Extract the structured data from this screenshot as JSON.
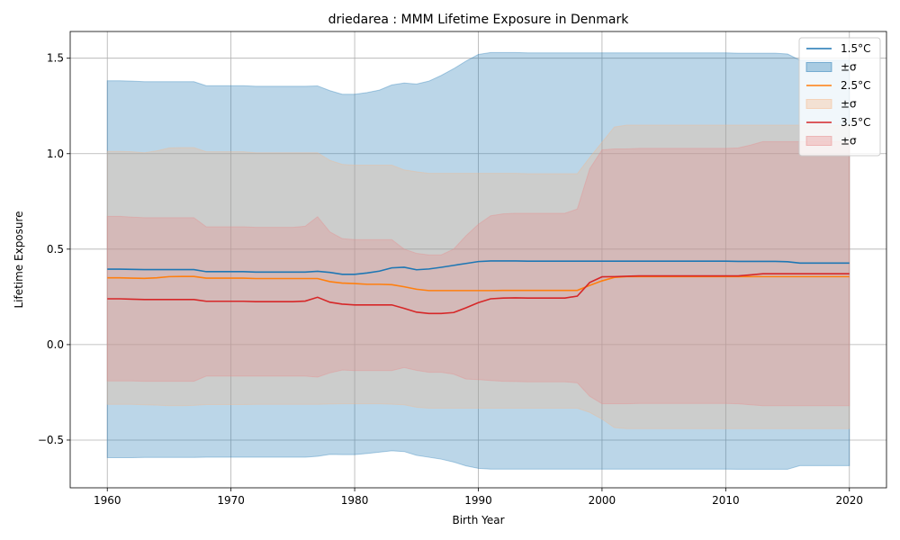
{
  "chart_data": {
    "type": "line",
    "title": "driedarea : MMM Lifetime Exposure in Denmark",
    "xlabel": "Birth Year",
    "ylabel": "Lifetime Exposure",
    "xlim": [
      1957,
      2023
    ],
    "ylim": [
      -0.75,
      1.64
    ],
    "xticks": [
      1960,
      1970,
      1980,
      1990,
      2000,
      2010,
      2020
    ],
    "yticks": [
      -0.5,
      0.0,
      0.5,
      1.0,
      1.5
    ],
    "xtick_labels": [
      "1960",
      "1970",
      "1980",
      "1990",
      "2000",
      "2010",
      "2020"
    ],
    "ytick_labels": [
      "−0.5",
      "0.0",
      "0.5",
      "1.0",
      "1.5"
    ],
    "grid": true,
    "legend_position": "top-right",
    "x": [
      1960,
      1961,
      1962,
      1963,
      1964,
      1965,
      1966,
      1967,
      1968,
      1969,
      1970,
      1971,
      1972,
      1973,
      1974,
      1975,
      1976,
      1977,
      1978,
      1979,
      1980,
      1981,
      1982,
      1983,
      1984,
      1985,
      1986,
      1987,
      1988,
      1989,
      1990,
      1991,
      1992,
      1993,
      1994,
      1995,
      1996,
      1997,
      1998,
      1999,
      2000,
      2001,
      2002,
      2003,
      2004,
      2005,
      2006,
      2007,
      2008,
      2009,
      2010,
      2011,
      2012,
      2013,
      2014,
      2015,
      2016,
      2017,
      2018,
      2019,
      2020
    ],
    "series": [
      {
        "name": "1.5°C",
        "band_label": "±σ",
        "color": "#1f77b4",
        "band_color": "#1f77b4",
        "mean": [
          0.395,
          0.395,
          0.394,
          0.393,
          0.393,
          0.393,
          0.393,
          0.393,
          0.382,
          0.382,
          0.382,
          0.382,
          0.38,
          0.38,
          0.38,
          0.38,
          0.38,
          0.384,
          0.378,
          0.368,
          0.368,
          0.375,
          0.385,
          0.402,
          0.405,
          0.392,
          0.396,
          0.405,
          0.415,
          0.425,
          0.435,
          0.438,
          0.438,
          0.438,
          0.437,
          0.437,
          0.437,
          0.437,
          0.437,
          0.437,
          0.437,
          0.437,
          0.437,
          0.437,
          0.437,
          0.437,
          0.437,
          0.437,
          0.437,
          0.437,
          0.437,
          0.436,
          0.436,
          0.436,
          0.436,
          0.434,
          0.427,
          0.427,
          0.427,
          0.427,
          0.427
        ],
        "upper": [
          1.382,
          1.382,
          1.38,
          1.377,
          1.377,
          1.377,
          1.377,
          1.377,
          1.356,
          1.356,
          1.356,
          1.356,
          1.353,
          1.353,
          1.353,
          1.353,
          1.353,
          1.355,
          1.33,
          1.311,
          1.311,
          1.32,
          1.333,
          1.36,
          1.37,
          1.365,
          1.38,
          1.41,
          1.445,
          1.485,
          1.52,
          1.53,
          1.53,
          1.53,
          1.528,
          1.528,
          1.528,
          1.528,
          1.528,
          1.528,
          1.528,
          1.528,
          1.528,
          1.528,
          1.528,
          1.528,
          1.528,
          1.528,
          1.528,
          1.528,
          1.528,
          1.526,
          1.526,
          1.526,
          1.526,
          1.522,
          1.49,
          1.49,
          1.49,
          1.49,
          1.49
        ],
        "lower": [
          -0.592,
          -0.592,
          -0.592,
          -0.591,
          -0.591,
          -0.591,
          -0.591,
          -0.591,
          -0.59,
          -0.59,
          -0.59,
          -0.59,
          -0.59,
          -0.59,
          -0.59,
          -0.59,
          -0.59,
          -0.585,
          -0.575,
          -0.576,
          -0.576,
          -0.57,
          -0.563,
          -0.556,
          -0.56,
          -0.58,
          -0.59,
          -0.6,
          -0.615,
          -0.635,
          -0.648,
          -0.652,
          -0.652,
          -0.652,
          -0.652,
          -0.652,
          -0.652,
          -0.652,
          -0.652,
          -0.652,
          -0.652,
          -0.652,
          -0.652,
          -0.652,
          -0.652,
          -0.652,
          -0.652,
          -0.652,
          -0.652,
          -0.652,
          -0.652,
          -0.653,
          -0.653,
          -0.653,
          -0.653,
          -0.653,
          -0.634,
          -0.634,
          -0.634,
          -0.634,
          -0.634
        ]
      },
      {
        "name": "2.5°C",
        "band_label": "±σ",
        "color": "#ff7f0e",
        "band_color": "#f5b88a",
        "mean": [
          0.35,
          0.35,
          0.348,
          0.347,
          0.35,
          0.356,
          0.357,
          0.357,
          0.348,
          0.348,
          0.348,
          0.348,
          0.346,
          0.346,
          0.346,
          0.346,
          0.346,
          0.346,
          0.33,
          0.322,
          0.32,
          0.316,
          0.316,
          0.314,
          0.303,
          0.29,
          0.283,
          0.283,
          0.283,
          0.283,
          0.283,
          0.283,
          0.284,
          0.284,
          0.284,
          0.284,
          0.284,
          0.284,
          0.284,
          0.31,
          0.334,
          0.352,
          0.356,
          0.356,
          0.356,
          0.356,
          0.356,
          0.356,
          0.356,
          0.356,
          0.356,
          0.356,
          0.356,
          0.356,
          0.356,
          0.356,
          0.356,
          0.356,
          0.356,
          0.356,
          0.356
        ],
        "upper": [
          1.012,
          1.012,
          1.01,
          1.005,
          1.015,
          1.03,
          1.032,
          1.032,
          1.01,
          1.01,
          1.01,
          1.01,
          1.005,
          1.005,
          1.005,
          1.005,
          1.005,
          1.005,
          0.965,
          0.944,
          0.94,
          0.94,
          0.94,
          0.94,
          0.915,
          0.905,
          0.897,
          0.897,
          0.897,
          0.897,
          0.897,
          0.897,
          0.897,
          0.897,
          0.895,
          0.895,
          0.895,
          0.895,
          0.895,
          0.98,
          1.06,
          1.14,
          1.15,
          1.15,
          1.15,
          1.15,
          1.15,
          1.15,
          1.15,
          1.15,
          1.15,
          1.15,
          1.15,
          1.15,
          1.15,
          1.15,
          1.15,
          1.15,
          1.15,
          1.15,
          1.15
        ],
        "lower": [
          -0.313,
          -0.313,
          -0.313,
          -0.315,
          -0.317,
          -0.32,
          -0.32,
          -0.318,
          -0.314,
          -0.314,
          -0.314,
          -0.314,
          -0.313,
          -0.313,
          -0.313,
          -0.313,
          -0.313,
          -0.313,
          -0.311,
          -0.31,
          -0.31,
          -0.31,
          -0.31,
          -0.312,
          -0.315,
          -0.328,
          -0.333,
          -0.333,
          -0.333,
          -0.333,
          -0.333,
          -0.333,
          -0.333,
          -0.333,
          -0.333,
          -0.333,
          -0.333,
          -0.333,
          -0.333,
          -0.355,
          -0.39,
          -0.435,
          -0.44,
          -0.44,
          -0.44,
          -0.44,
          -0.44,
          -0.44,
          -0.44,
          -0.44,
          -0.44,
          -0.44,
          -0.44,
          -0.44,
          -0.44,
          -0.44,
          -0.44,
          -0.44,
          -0.44,
          -0.44,
          -0.44
        ]
      },
      {
        "name": "3.5°C",
        "band_label": "±σ",
        "color": "#d62728",
        "band_color": "#e88a8a",
        "mean": [
          0.24,
          0.24,
          0.238,
          0.236,
          0.236,
          0.236,
          0.236,
          0.236,
          0.227,
          0.227,
          0.227,
          0.227,
          0.225,
          0.225,
          0.225,
          0.225,
          0.228,
          0.248,
          0.222,
          0.212,
          0.208,
          0.208,
          0.208,
          0.208,
          0.19,
          0.17,
          0.163,
          0.163,
          0.168,
          0.193,
          0.22,
          0.24,
          0.244,
          0.245,
          0.244,
          0.244,
          0.244,
          0.244,
          0.254,
          0.325,
          0.355,
          0.356,
          0.358,
          0.36,
          0.36,
          0.36,
          0.36,
          0.36,
          0.36,
          0.36,
          0.36,
          0.36,
          0.365,
          0.371,
          0.371,
          0.371,
          0.371,
          0.371,
          0.371,
          0.371,
          0.371
        ],
        "upper": [
          0.672,
          0.672,
          0.668,
          0.665,
          0.665,
          0.665,
          0.665,
          0.665,
          0.617,
          0.617,
          0.617,
          0.617,
          0.614,
          0.614,
          0.614,
          0.614,
          0.62,
          0.67,
          0.59,
          0.555,
          0.55,
          0.55,
          0.55,
          0.55,
          0.5,
          0.478,
          0.47,
          0.47,
          0.5,
          0.57,
          0.63,
          0.675,
          0.685,
          0.688,
          0.688,
          0.688,
          0.688,
          0.688,
          0.71,
          0.92,
          1.02,
          1.025,
          1.025,
          1.028,
          1.028,
          1.028,
          1.028,
          1.028,
          1.028,
          1.028,
          1.028,
          1.03,
          1.045,
          1.063,
          1.063,
          1.063,
          1.063,
          1.063,
          1.063,
          1.063,
          1.063
        ],
        "lower": [
          -0.19,
          -0.19,
          -0.19,
          -0.192,
          -0.192,
          -0.192,
          -0.192,
          -0.192,
          -0.165,
          -0.165,
          -0.165,
          -0.165,
          -0.165,
          -0.165,
          -0.165,
          -0.165,
          -0.165,
          -0.17,
          -0.148,
          -0.133,
          -0.136,
          -0.136,
          -0.136,
          -0.136,
          -0.12,
          -0.135,
          -0.145,
          -0.145,
          -0.155,
          -0.18,
          -0.183,
          -0.188,
          -0.192,
          -0.193,
          -0.195,
          -0.195,
          -0.195,
          -0.195,
          -0.2,
          -0.27,
          -0.31,
          -0.31,
          -0.31,
          -0.308,
          -0.308,
          -0.308,
          -0.308,
          -0.308,
          -0.308,
          -0.308,
          -0.308,
          -0.31,
          -0.315,
          -0.32,
          -0.32,
          -0.32,
          -0.32,
          -0.32,
          -0.32,
          -0.32,
          -0.32
        ]
      }
    ]
  }
}
